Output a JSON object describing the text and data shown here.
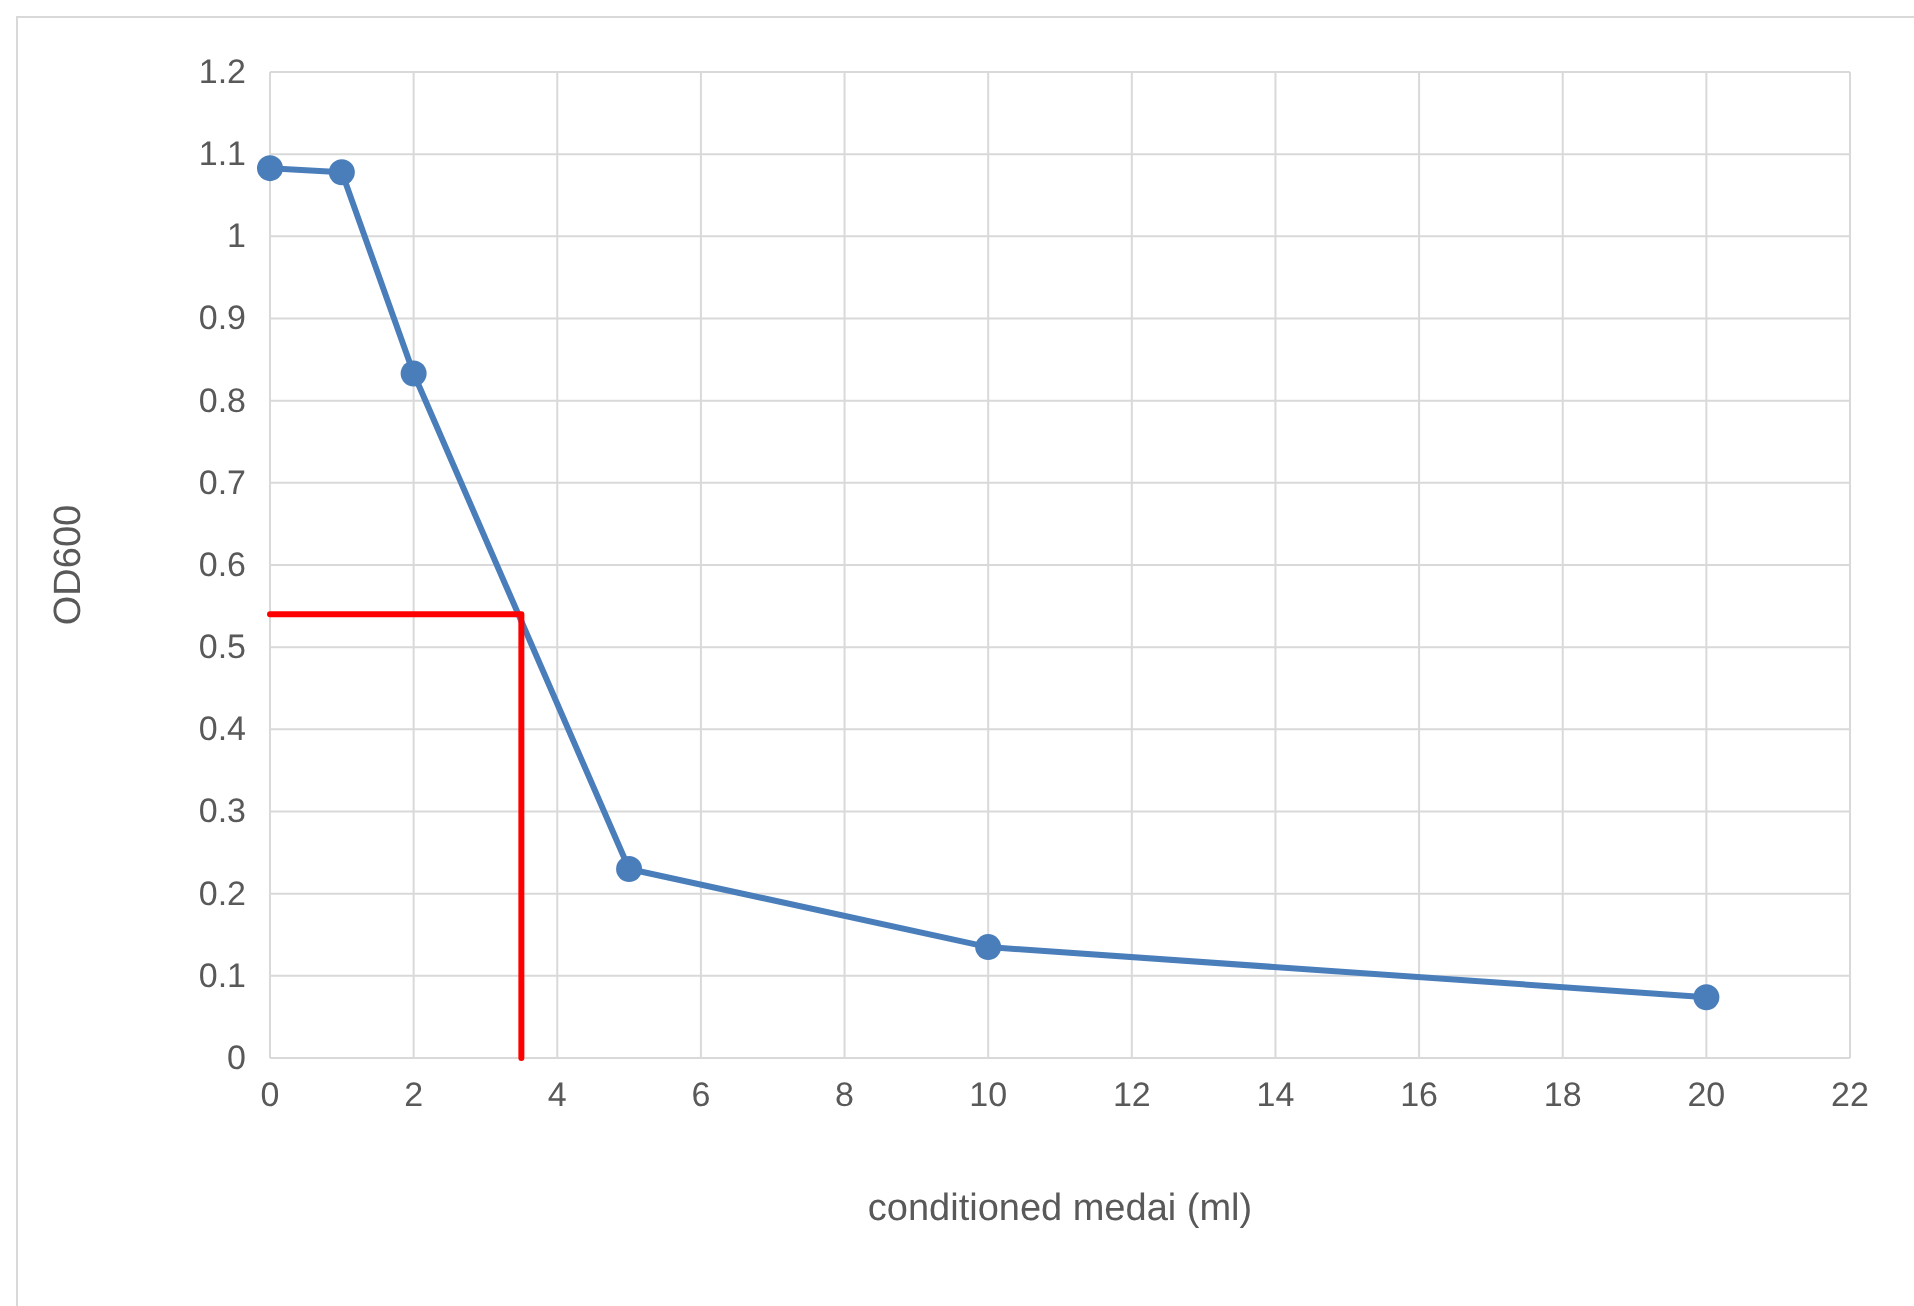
{
  "chart_data": {
    "type": "line",
    "xlabel": "conditioned medai (ml)",
    "ylabel": "OD600",
    "xlim": [
      0,
      22
    ],
    "xticks": [
      0,
      2,
      4,
      6,
      8,
      10,
      12,
      14,
      16,
      18,
      20,
      22
    ],
    "ylim": [
      0,
      1.2
    ],
    "yticks": [
      0,
      0.1,
      0.2,
      0.3,
      0.4,
      0.5,
      0.6,
      0.7,
      0.8,
      0.9,
      1,
      1.1,
      1.2
    ],
    "grid": true,
    "marker": "circle",
    "line_style": "solid",
    "series": [
      {
        "color": "#4a7ebb",
        "x": [
          0,
          1,
          2,
          5,
          10,
          20
        ],
        "values": [
          1.083,
          1.078,
          0.833,
          0.23,
          0.135,
          0.074
        ]
      },
      {
        "type": "line",
        "marker": "none",
        "color": "#ff0000",
        "x": [
          0,
          3.5,
          3.5
        ],
        "values": [
          0.54,
          0.54,
          0
        ]
      }
    ]
  }
}
